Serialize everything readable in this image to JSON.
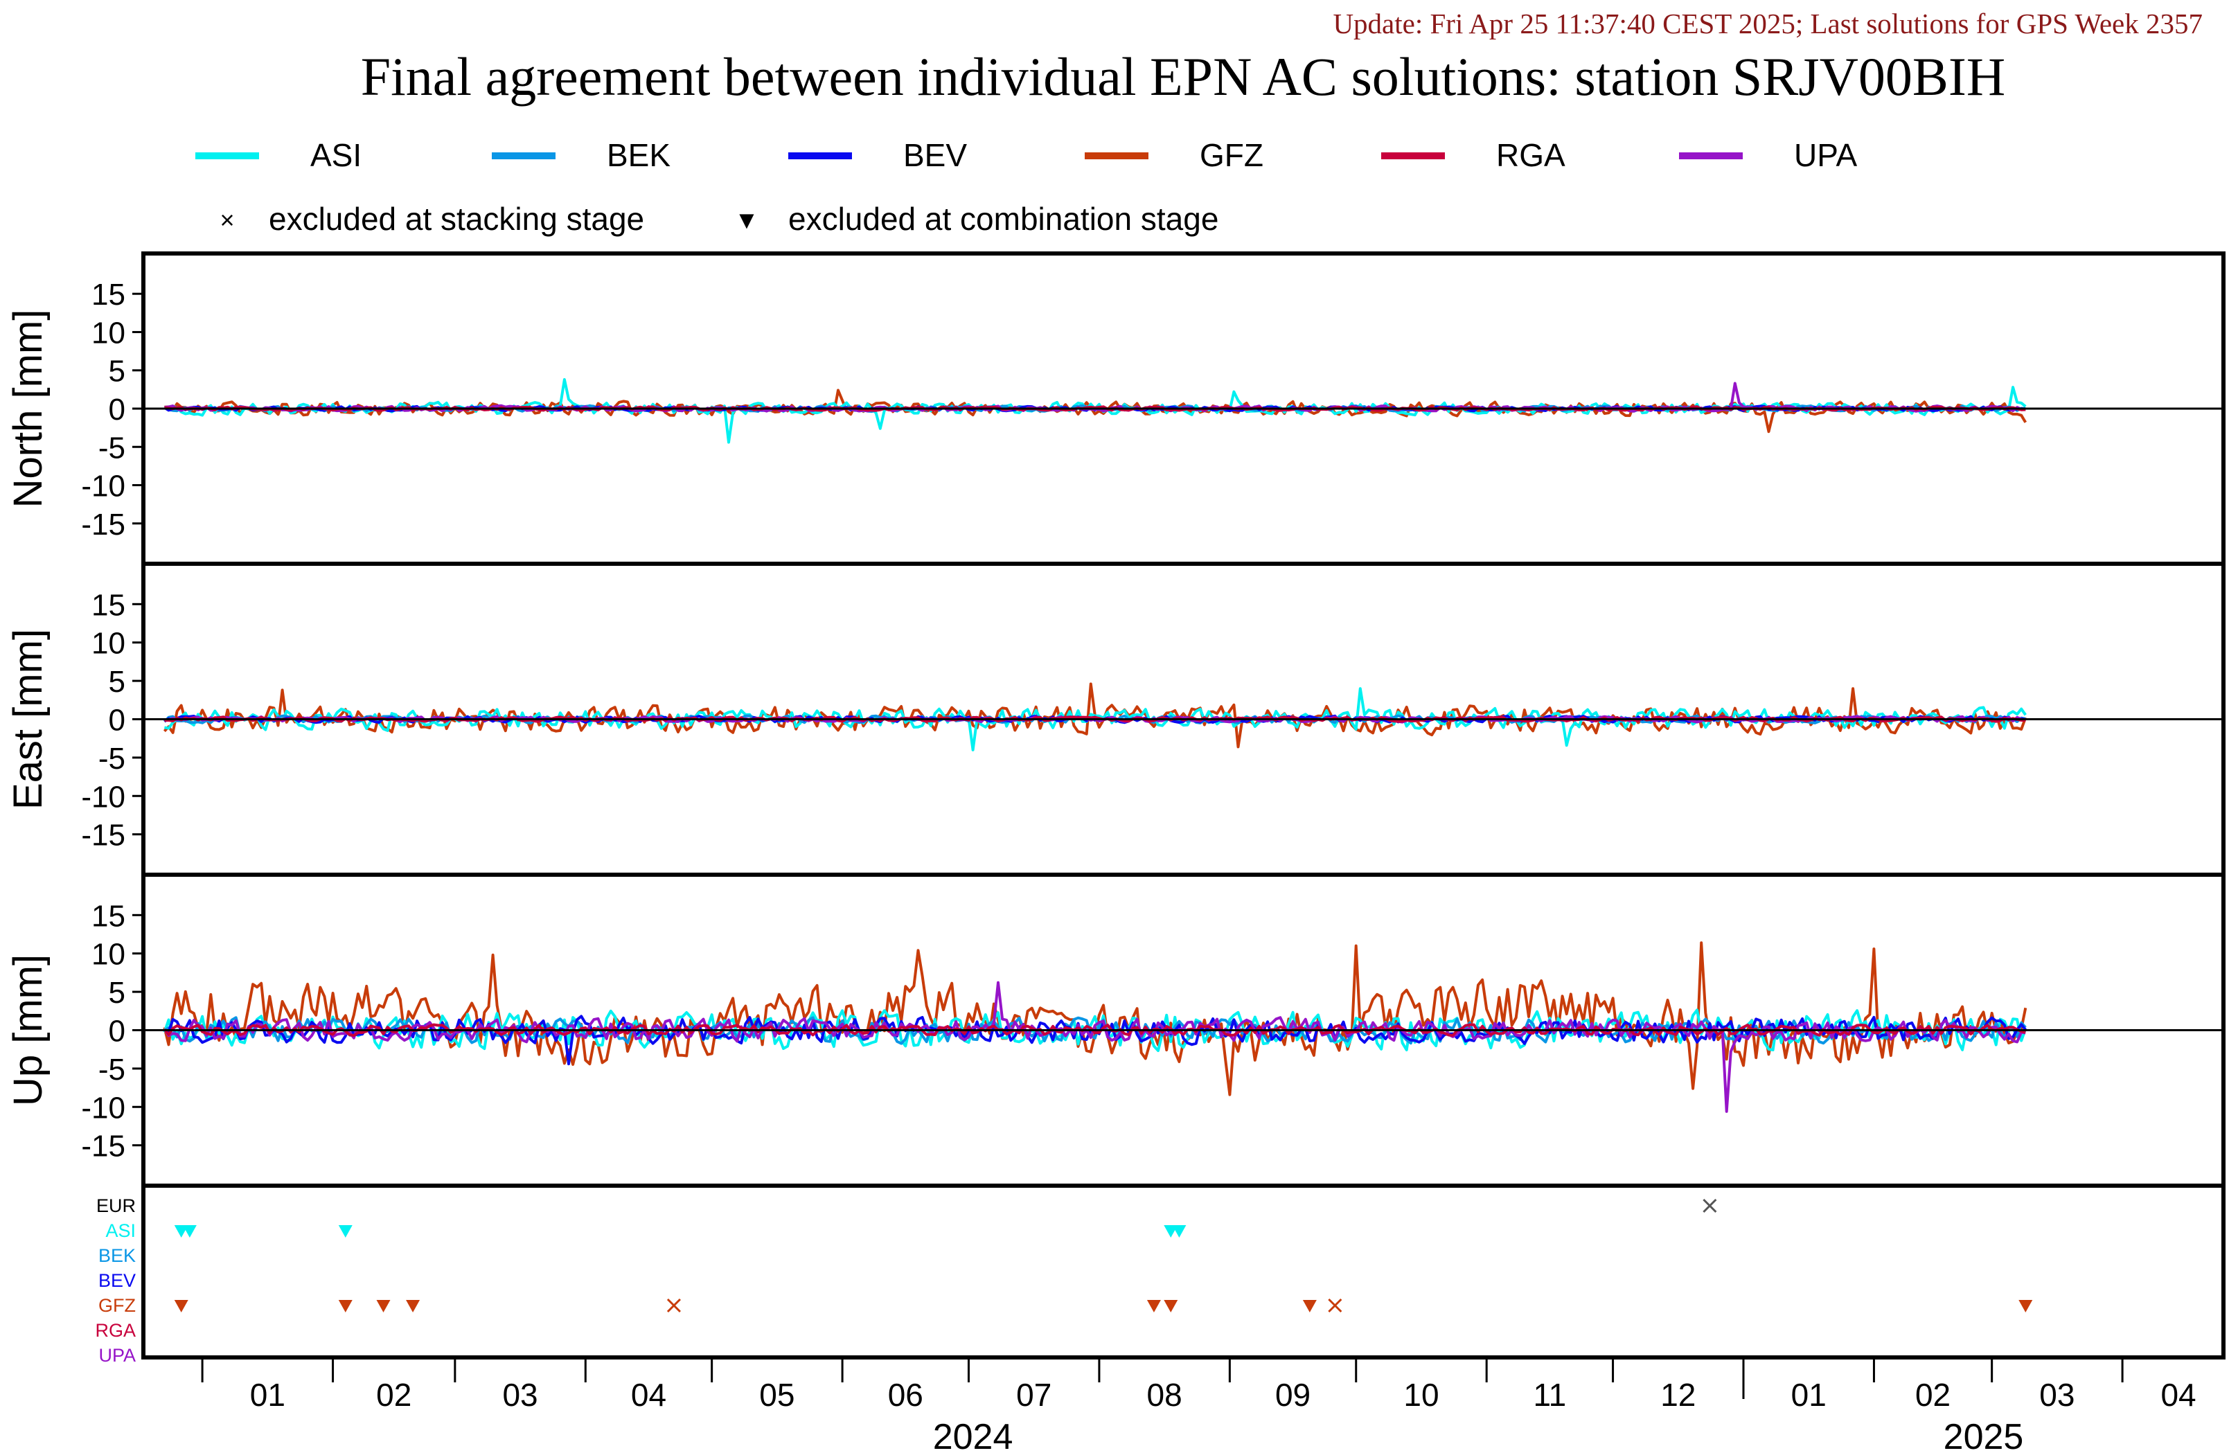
{
  "header": {
    "update_line": "Update: Fri Apr 25 11:37:40 CEST 2025; Last solutions for GPS Week 2357",
    "title": "Final agreement between individual EPN AC solutions: station SRJV00BIH"
  },
  "legend": {
    "series": [
      {
        "name": "ASI",
        "color": "#00f0f0"
      },
      {
        "name": "BEK",
        "color": "#0a96e6"
      },
      {
        "name": "BEV",
        "color": "#0a0af0"
      },
      {
        "name": "GFZ",
        "color": "#c83c0a"
      },
      {
        "name": "RGA",
        "color": "#c8003c"
      },
      {
        "name": "UPA",
        "color": "#9614c8"
      }
    ],
    "markers": [
      {
        "symbol": "×",
        "label": "excluded at stacking stage"
      },
      {
        "symbol": "▼",
        "label": "excluded at combination stage"
      }
    ]
  },
  "chart_data": {
    "type": "line",
    "x_range": [
      "2023-12-18",
      "2025-04-25"
    ],
    "panels": [
      {
        "ylabel": "North [mm]",
        "ylim": [
          -19,
          19
        ],
        "yticks": [
          15,
          10,
          5,
          0,
          -5,
          -10,
          -15
        ],
        "amplitude": {
          "ASI": 0.7,
          "BEK": 0.3,
          "BEV": 0.25,
          "GFZ": 0.8,
          "RGA": 0.2,
          "UPA": 0.3
        },
        "spikes": [
          {
            "series": "ASI",
            "date": "2024-03-27",
            "value": 3.8
          },
          {
            "series": "ASI",
            "date": "2024-05-05",
            "value": -4.4
          },
          {
            "series": "ASI",
            "date": "2024-06-10",
            "value": -2.6
          },
          {
            "series": "GFZ",
            "date": "2024-05-31",
            "value": 2.4
          },
          {
            "series": "ASI",
            "date": "2024-09-02",
            "value": 2.2
          },
          {
            "series": "UPA",
            "date": "2024-12-30",
            "value": 3.3
          },
          {
            "series": "GFZ",
            "date": "2025-01-07",
            "value": -3.0
          },
          {
            "series": "ASI",
            "date": "2025-03-06",
            "value": 2.8
          },
          {
            "series": "GFZ",
            "date": "2025-03-09",
            "value": -1.8
          }
        ]
      },
      {
        "ylabel": "East [mm]",
        "ylim": [
          -19,
          19
        ],
        "yticks": [
          15,
          10,
          5,
          0,
          -5,
          -10,
          -15
        ],
        "amplitude": {
          "ASI": 1.2,
          "BEK": 0.4,
          "BEV": 0.35,
          "GFZ": 1.6,
          "RGA": 0.25,
          "UPA": 0.3
        },
        "spikes": [
          {
            "series": "GFZ",
            "date": "2024-01-20",
            "value": 3.8
          },
          {
            "series": "ASI",
            "date": "2024-07-02",
            "value": -4.0
          },
          {
            "series": "GFZ",
            "date": "2024-07-30",
            "value": 4.6
          },
          {
            "series": "GFZ",
            "date": "2024-09-03",
            "value": -3.6
          },
          {
            "series": "ASI",
            "date": "2024-10-02",
            "value": 4.0
          },
          {
            "series": "ASI",
            "date": "2024-11-20",
            "value": -3.4
          },
          {
            "series": "GFZ",
            "date": "2025-01-27",
            "value": 4.0
          }
        ]
      },
      {
        "ylabel": "Up [mm]",
        "ylim": [
          -19,
          19
        ],
        "yticks": [
          15,
          10,
          5,
          0,
          -5,
          -10,
          -15
        ],
        "amplitude": {
          "ASI": 2.2,
          "BEK": 1.4,
          "BEV": 1.5,
          "GFZ": 3.2,
          "RGA": 0.6,
          "UPA": 1.3
        },
        "spikes": [
          {
            "series": "GFZ",
            "date": "2024-03-10",
            "value": 9.8
          },
          {
            "series": "GFZ",
            "date": "2024-06-19",
            "value": 10.4
          },
          {
            "series": "GFZ",
            "date": "2024-09-01",
            "value": -8.4
          },
          {
            "series": "GFZ",
            "date": "2024-10-01",
            "value": 11.0
          },
          {
            "series": "GFZ",
            "date": "2024-12-22",
            "value": 11.4
          },
          {
            "series": "GFZ",
            "date": "2024-12-20",
            "value": -7.6
          },
          {
            "series": "UPA",
            "date": "2024-12-28",
            "value": -10.6
          },
          {
            "series": "GFZ",
            "date": "2025-02-01",
            "value": 10.6
          },
          {
            "series": "UPA",
            "date": "2024-07-08",
            "value": 6.2
          },
          {
            "series": "BEV",
            "date": "2024-03-28",
            "value": -4.4
          }
        ]
      }
    ],
    "exclusion_panel": {
      "rows": [
        "EUR",
        "ASI",
        "BEK",
        "BEV",
        "GFZ",
        "RGA",
        "UPA"
      ],
      "markers": [
        {
          "row": "EUR",
          "symbol": "x",
          "date": "2024-12-24"
        },
        {
          "row": "ASI",
          "symbol": "v",
          "date": "2023-12-27"
        },
        {
          "row": "ASI",
          "symbol": "v",
          "date": "2023-12-29"
        },
        {
          "row": "ASI",
          "symbol": "v",
          "date": "2024-02-04"
        },
        {
          "row": "ASI",
          "symbol": "v",
          "date": "2024-08-18"
        },
        {
          "row": "ASI",
          "symbol": "v",
          "date": "2024-08-20"
        },
        {
          "row": "GFZ",
          "symbol": "v",
          "date": "2023-12-27"
        },
        {
          "row": "GFZ",
          "symbol": "v",
          "date": "2024-02-04"
        },
        {
          "row": "GFZ",
          "symbol": "v",
          "date": "2024-02-13"
        },
        {
          "row": "GFZ",
          "symbol": "v",
          "date": "2024-02-20"
        },
        {
          "row": "GFZ",
          "symbol": "x",
          "date": "2024-04-22"
        },
        {
          "row": "GFZ",
          "symbol": "v",
          "date": "2024-08-14"
        },
        {
          "row": "GFZ",
          "symbol": "v",
          "date": "2024-08-18"
        },
        {
          "row": "GFZ",
          "symbol": "v",
          "date": "2024-09-20"
        },
        {
          "row": "GFZ",
          "symbol": "x",
          "date": "2024-09-26"
        },
        {
          "row": "GFZ",
          "symbol": "v",
          "date": "2025-03-09"
        }
      ]
    },
    "x_axis": {
      "month_labels": [
        "01",
        "02",
        "03",
        "04",
        "05",
        "06",
        "07",
        "08",
        "09",
        "10",
        "11",
        "12",
        "01",
        "02",
        "03",
        "04"
      ],
      "year_labels": [
        "2024",
        "2025"
      ]
    }
  }
}
